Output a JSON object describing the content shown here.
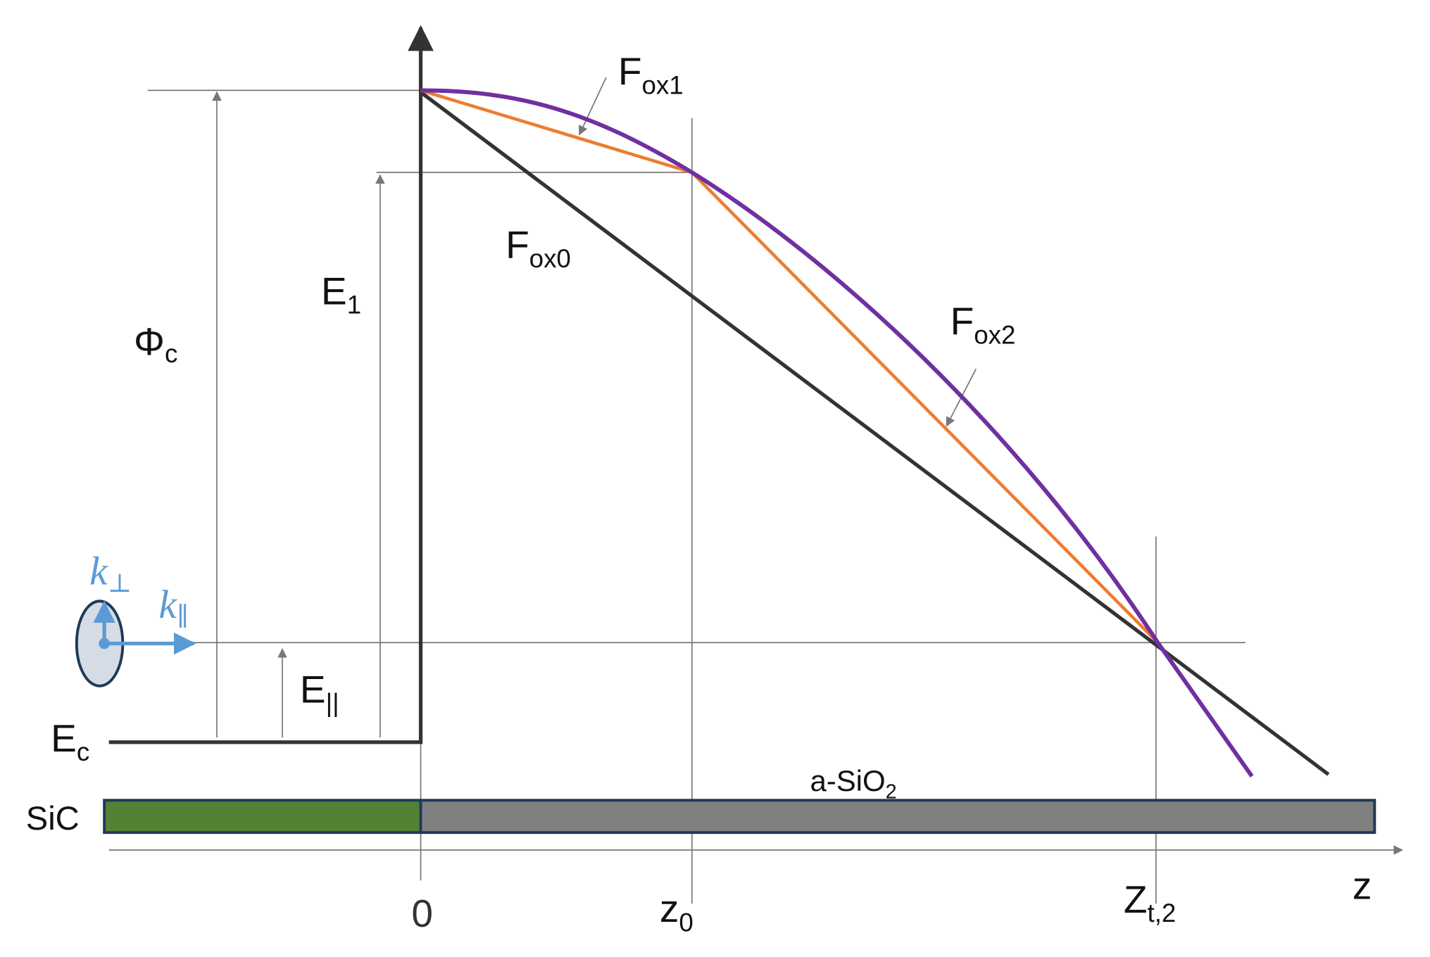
{
  "labels": {
    "f_ox1": {
      "main": "F",
      "sub": "ox1"
    },
    "f_ox0": {
      "main": "F",
      "sub": "ox0"
    },
    "f_ox2": {
      "main": "F",
      "sub": "ox2"
    },
    "e_1": {
      "main": "E",
      "sub": "1"
    },
    "phi_c": {
      "main": "Φ",
      "sub": "c"
    },
    "e_par": {
      "main": "E",
      "sub": "||"
    },
    "e_c": {
      "main": "E",
      "sub": "c"
    },
    "k_perp": {
      "main": "k",
      "sub": "⊥"
    },
    "k_par": {
      "main": "k",
      "sub": "∥"
    },
    "oxide": {
      "main": "a-SiO",
      "sub": "2"
    },
    "substrate": "SiC",
    "origin": "0",
    "z_0": {
      "main": "z",
      "sub": "0"
    },
    "z_t2": {
      "main": "Z",
      "sub": "t,2"
    },
    "axis_z": "z"
  }
}
